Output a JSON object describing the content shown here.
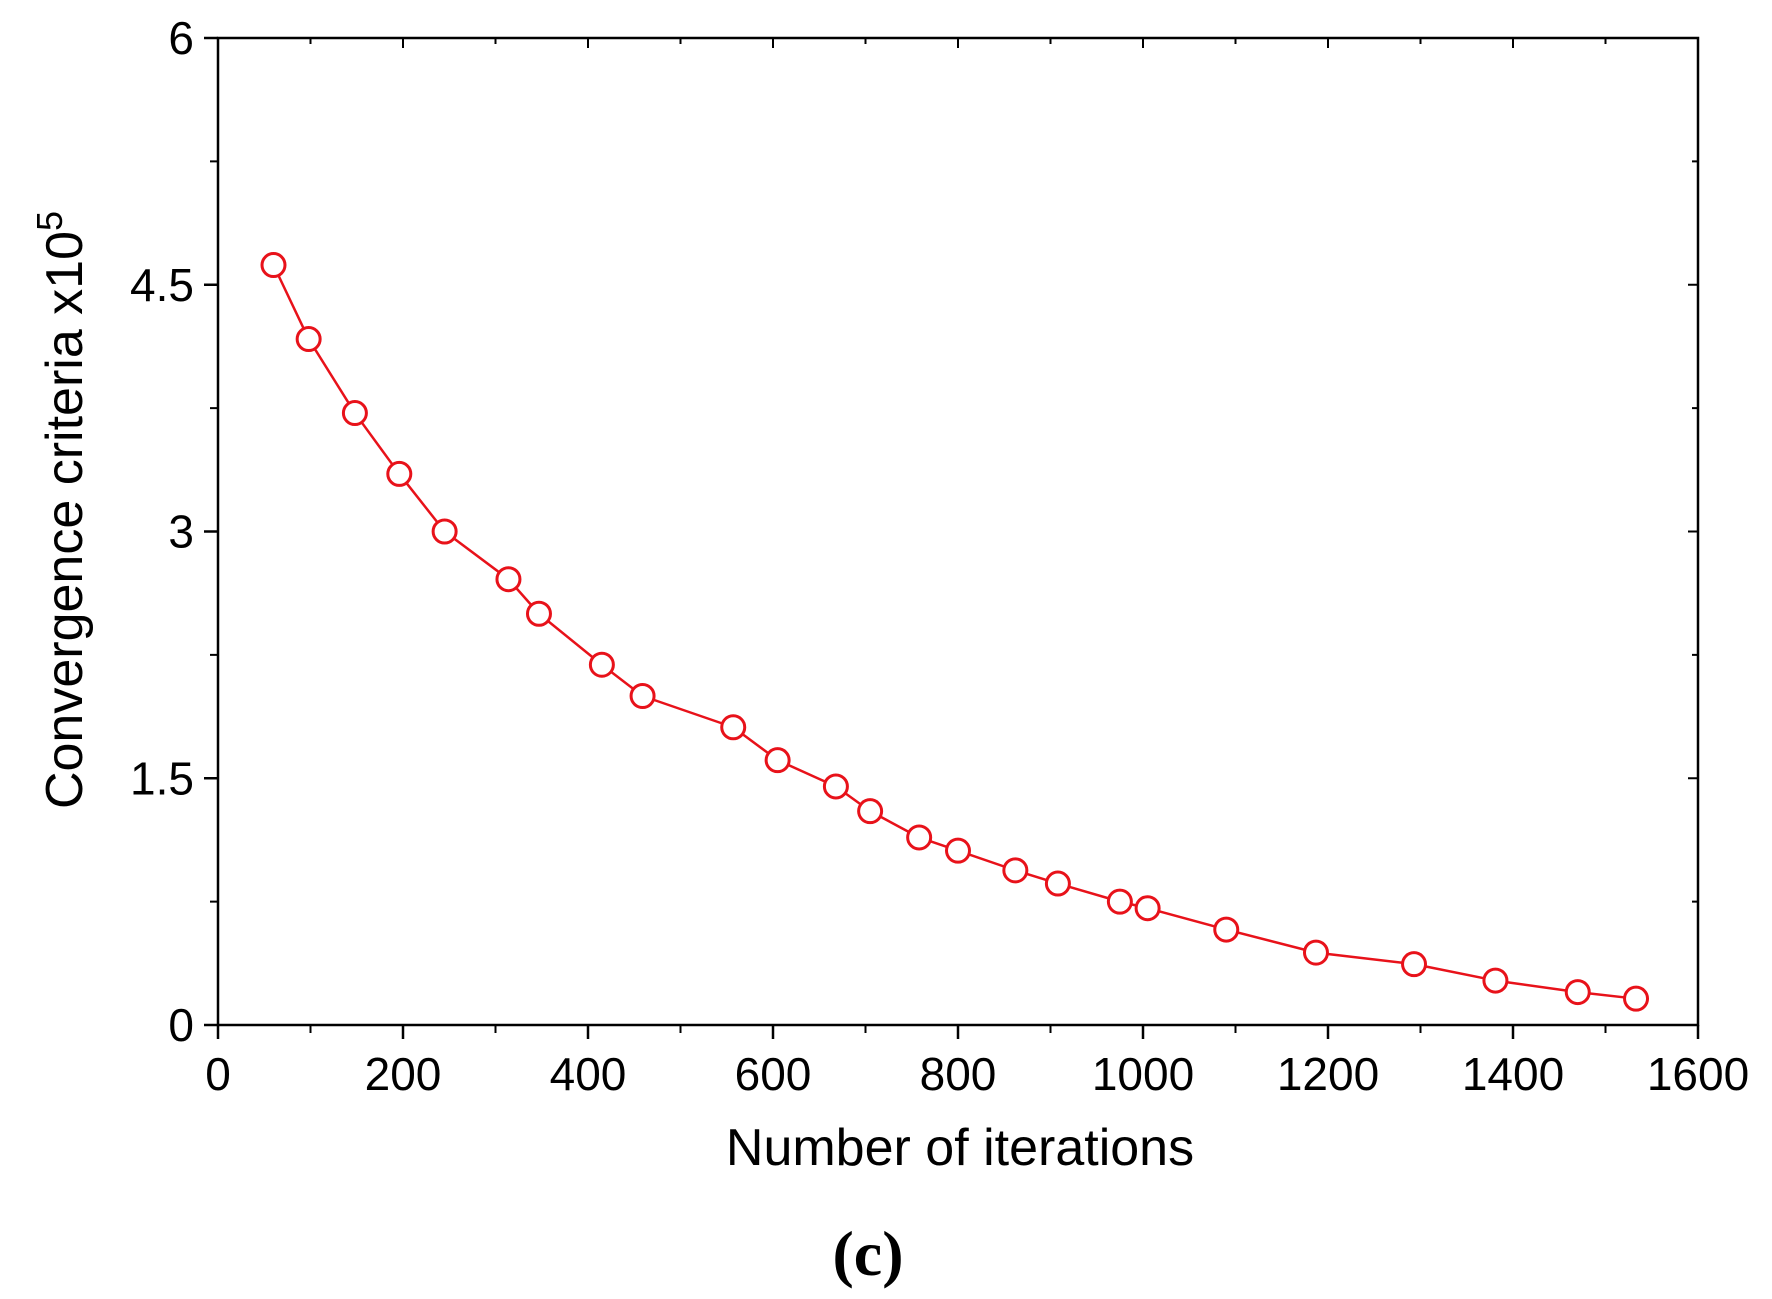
{
  "chart_data": {
    "type": "line",
    "title": "",
    "xlabel": "Number of iterations",
    "ylabel": "Convergence criteria x10",
    "ylabel_exponent": "5",
    "caption": "(c)",
    "xlim": [
      0,
      1600
    ],
    "ylim": [
      0,
      6
    ],
    "x_ticks": [
      0,
      200,
      400,
      600,
      800,
      1000,
      1200,
      1400,
      1600
    ],
    "x_tick_labels": [
      "0",
      "200",
      "400",
      "600",
      "800",
      "1000",
      "1200",
      "1400",
      "1600"
    ],
    "y_ticks": [
      0,
      1.5,
      3,
      4.5,
      6
    ],
    "y_tick_labels": [
      "0",
      "1.5",
      "3",
      "4.5",
      "6"
    ],
    "grid": false,
    "series": [
      {
        "name": "Convergence criteria",
        "color": "#e8121a",
        "marker": "open-circle",
        "x": [
          60,
          98,
          148,
          196,
          245,
          314,
          347,
          415,
          459,
          557,
          605,
          668,
          705,
          758,
          800,
          862,
          908,
          975,
          1005,
          1090,
          1187,
          1293,
          1381,
          1470,
          1533
        ],
        "y": [
          4.62,
          4.17,
          3.72,
          3.35,
          3.0,
          2.71,
          2.5,
          2.19,
          2.0,
          1.81,
          1.61,
          1.45,
          1.3,
          1.14,
          1.06,
          0.94,
          0.86,
          0.75,
          0.71,
          0.58,
          0.44,
          0.37,
          0.27,
          0.2,
          0.16
        ]
      }
    ]
  }
}
